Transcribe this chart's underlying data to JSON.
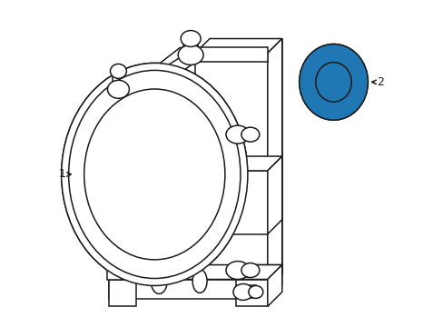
{
  "bg_color": "#ffffff",
  "line_color": "#1a1a1a",
  "line_width": 1.1,
  "label1": "1",
  "label2": "2",
  "figsize": [
    4.89,
    3.6
  ],
  "dpi": 100
}
